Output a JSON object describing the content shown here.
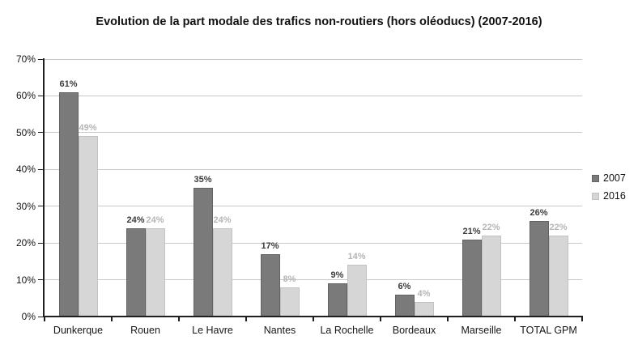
{
  "chart_data": {
    "type": "bar",
    "title": "Evolution de la part modale des trafics non-routiers (hors oléoducs) (2007-2016)",
    "categories": [
      "Dunkerque",
      "Rouen",
      "Le Havre",
      "Nantes",
      "La Rochelle",
      "Bordeaux",
      "Marseille",
      "TOTAL GPM"
    ],
    "series": [
      {
        "name": "2007",
        "values": [
          61,
          24,
          35,
          17,
          9,
          6,
          21,
          26
        ],
        "labels": [
          "61%",
          "24%",
          "35%",
          "17%",
          "9%",
          "6%",
          "21%",
          "26%"
        ],
        "fill": "#7a7a7a",
        "border": "#626262",
        "label_color": "#3c3c3c"
      },
      {
        "name": "2016",
        "values": [
          49,
          24,
          24,
          8,
          14,
          4,
          22,
          22
        ],
        "labels": [
          "49%",
          "24%",
          "24%",
          "8%",
          "14%",
          "4%",
          "22%",
          "22%"
        ],
        "fill": "#d6d6d6",
        "border": "#c2c2c2",
        "label_color": "#b5b5b5"
      }
    ],
    "ylim": [
      0,
      70
    ],
    "ytick_step": 10,
    "ytick_labels": [
      "0%",
      "10%",
      "20%",
      "30%",
      "40%",
      "50%",
      "60%",
      "70%"
    ],
    "grid": true,
    "legend_position": "right",
    "unit": "%"
  },
  "colors": {
    "background": "#ffffff",
    "axis": "#1f1f1f",
    "gridline": "#c9c9c9",
    "text": "#111111"
  }
}
